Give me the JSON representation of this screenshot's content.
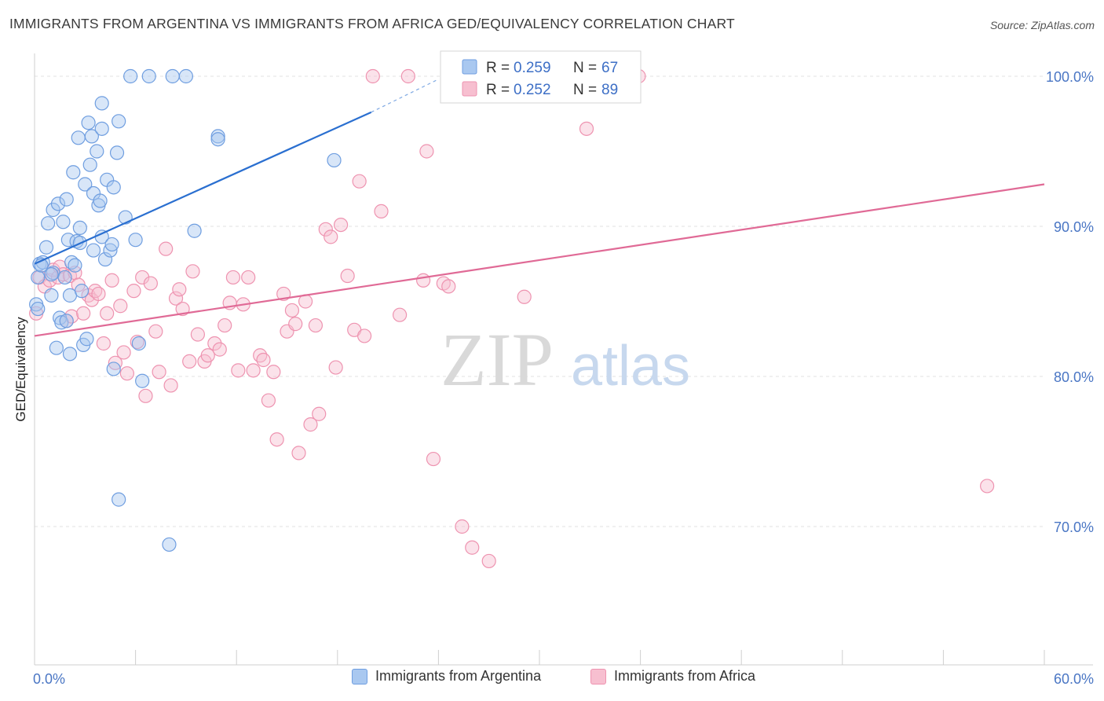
{
  "title": "IMMIGRANTS FROM ARGENTINA VS IMMIGRANTS FROM AFRICA GED/EQUIVALENCY CORRELATION CHART",
  "source": "Source: ZipAtlas.com",
  "watermark": {
    "zip": "ZIP",
    "atlas": "atlas"
  },
  "colors": {
    "argentina_fill": "#a9c8f0",
    "argentina_stroke": "#6f9ee0",
    "argentina_line": "#2a6fd0",
    "africa_fill": "#f7bfd0",
    "africa_stroke": "#ee93b0",
    "africa_line": "#e06a96",
    "tick_text": "#4a76c4",
    "grid": "#e1e1e1"
  },
  "legend": {
    "rows": [
      {
        "r_label": "R =",
        "r_value": "0.259",
        "n_label": "N =",
        "n_value": "67"
      },
      {
        "r_label": "R =",
        "r_value": "0.252",
        "n_label": "N =",
        "n_value": "89"
      }
    ]
  },
  "bottom_legend": [
    {
      "label": "Immigrants from Argentina"
    },
    {
      "label": "Immigrants from Africa"
    }
  ],
  "chart_data": {
    "type": "scatter",
    "xlabel": "",
    "ylabel": "GED/Equivalency",
    "xlim": [
      0,
      60
    ],
    "ylim": [
      60,
      101.5
    ],
    "x_tick_labels": [
      "0.0%",
      "60.0%"
    ],
    "y_ticks": [
      70,
      80,
      90,
      100
    ],
    "y_tick_labels": [
      "70.0%",
      "80.0%",
      "90.0%",
      "100.0%"
    ],
    "grid": true,
    "legend_position": "top-center",
    "series": [
      {
        "name": "Immigrants from Argentina",
        "r": 0.259,
        "n": 67,
        "trend": {
          "x": [
            0,
            20
          ],
          "y": [
            87.5,
            97.6
          ]
        },
        "trend_extension": {
          "x": [
            20,
            24
          ],
          "y": [
            97.6,
            99.8
          ]
        },
        "points": [
          [
            0.1,
            84.8
          ],
          [
            0.2,
            86.6
          ],
          [
            0.3,
            87.5
          ],
          [
            0.5,
            87.6
          ],
          [
            0.7,
            88.6
          ],
          [
            0.8,
            90.2
          ],
          [
            1.0,
            85.4
          ],
          [
            1.1,
            86.9
          ],
          [
            1.1,
            91.1
          ],
          [
            1.3,
            81.9
          ],
          [
            1.4,
            91.5
          ],
          [
            1.5,
            83.9
          ],
          [
            1.6,
            83.6
          ],
          [
            1.7,
            90.3
          ],
          [
            1.8,
            86.6
          ],
          [
            1.9,
            91.8
          ],
          [
            2.0,
            89.1
          ],
          [
            2.1,
            81.5
          ],
          [
            2.1,
            85.4
          ],
          [
            2.2,
            87.6
          ],
          [
            2.3,
            93.6
          ],
          [
            2.4,
            87.4
          ],
          [
            2.5,
            89.0
          ],
          [
            2.6,
            95.9
          ],
          [
            2.7,
            88.9
          ],
          [
            2.7,
            89.9
          ],
          [
            2.8,
            85.7
          ],
          [
            2.9,
            82.1
          ],
          [
            3.0,
            92.8
          ],
          [
            3.1,
            82.5
          ],
          [
            3.2,
            96.9
          ],
          [
            3.3,
            94.1
          ],
          [
            3.4,
            96.0
          ],
          [
            3.5,
            88.4
          ],
          [
            3.5,
            92.2
          ],
          [
            3.7,
            95.0
          ],
          [
            3.8,
            91.4
          ],
          [
            3.9,
            91.7
          ],
          [
            4.0,
            89.3
          ],
          [
            4.0,
            96.5
          ],
          [
            4.0,
            98.2
          ],
          [
            4.2,
            87.8
          ],
          [
            4.3,
            93.1
          ],
          [
            4.5,
            88.4
          ],
          [
            4.6,
            88.8
          ],
          [
            4.7,
            80.5
          ],
          [
            4.7,
            92.6
          ],
          [
            4.9,
            94.9
          ],
          [
            5.0,
            97.0
          ],
          [
            5.0,
            71.8
          ],
          [
            5.4,
            90.6
          ],
          [
            5.7,
            100.0
          ],
          [
            6.0,
            89.1
          ],
          [
            6.2,
            82.2
          ],
          [
            6.4,
            79.7
          ],
          [
            6.8,
            100.0
          ],
          [
            8.0,
            68.8
          ],
          [
            8.2,
            100.0
          ],
          [
            9.0,
            100.0
          ],
          [
            9.5,
            89.7
          ],
          [
            10.9,
            96.0
          ],
          [
            10.9,
            95.8
          ],
          [
            17.8,
            94.4
          ],
          [
            0.2,
            84.5
          ],
          [
            0.4,
            87.4
          ],
          [
            1.0,
            86.8
          ],
          [
            1.9,
            83.7
          ]
        ]
      },
      {
        "name": "Immigrants from Africa",
        "r": 0.252,
        "n": 89,
        "trend": {
          "x": [
            0,
            60
          ],
          "y": [
            82.7,
            92.8
          ]
        },
        "points": [
          [
            0.1,
            84.2
          ],
          [
            0.3,
            86.6
          ],
          [
            0.6,
            86.0
          ],
          [
            0.9,
            86.4
          ],
          [
            1.1,
            87.1
          ],
          [
            1.4,
            86.6
          ],
          [
            1.5,
            87.3
          ],
          [
            1.7,
            86.8
          ],
          [
            1.9,
            83.7
          ],
          [
            2.1,
            86.7
          ],
          [
            2.2,
            84.0
          ],
          [
            2.4,
            86.9
          ],
          [
            2.6,
            86.1
          ],
          [
            2.9,
            84.2
          ],
          [
            3.2,
            85.4
          ],
          [
            3.4,
            85.1
          ],
          [
            3.6,
            85.7
          ],
          [
            3.8,
            85.5
          ],
          [
            4.1,
            82.2
          ],
          [
            4.3,
            84.2
          ],
          [
            4.6,
            86.4
          ],
          [
            4.8,
            80.9
          ],
          [
            5.1,
            84.7
          ],
          [
            5.3,
            81.6
          ],
          [
            5.5,
            80.2
          ],
          [
            5.9,
            85.7
          ],
          [
            6.1,
            82.3
          ],
          [
            6.4,
            86.6
          ],
          [
            6.6,
            78.7
          ],
          [
            6.9,
            86.2
          ],
          [
            7.2,
            83.0
          ],
          [
            7.4,
            80.3
          ],
          [
            7.8,
            88.5
          ],
          [
            8.1,
            79.4
          ],
          [
            8.4,
            85.2
          ],
          [
            8.6,
            85.8
          ],
          [
            8.8,
            84.5
          ],
          [
            9.2,
            81.0
          ],
          [
            9.4,
            87.0
          ],
          [
            9.7,
            82.8
          ],
          [
            10.1,
            81.0
          ],
          [
            10.3,
            81.4
          ],
          [
            10.7,
            82.2
          ],
          [
            11.0,
            81.8
          ],
          [
            11.3,
            83.4
          ],
          [
            11.6,
            84.9
          ],
          [
            11.8,
            86.6
          ],
          [
            12.1,
            80.4
          ],
          [
            12.4,
            84.8
          ],
          [
            12.7,
            86.6
          ],
          [
            13.0,
            80.4
          ],
          [
            13.4,
            81.4
          ],
          [
            13.6,
            81.1
          ],
          [
            13.9,
            78.4
          ],
          [
            14.2,
            80.3
          ],
          [
            14.4,
            75.8
          ],
          [
            14.8,
            85.5
          ],
          [
            15.0,
            83.0
          ],
          [
            15.3,
            84.4
          ],
          [
            15.5,
            83.5
          ],
          [
            15.7,
            74.9
          ],
          [
            16.1,
            85.0
          ],
          [
            16.4,
            76.8
          ],
          [
            16.7,
            83.4
          ],
          [
            16.9,
            77.5
          ],
          [
            17.3,
            89.8
          ],
          [
            17.6,
            89.3
          ],
          [
            17.9,
            80.6
          ],
          [
            18.2,
            90.1
          ],
          [
            18.6,
            86.7
          ],
          [
            19.0,
            83.1
          ],
          [
            19.3,
            93.0
          ],
          [
            19.6,
            82.7
          ],
          [
            20.1,
            100.0
          ],
          [
            20.6,
            91.0
          ],
          [
            21.7,
            84.1
          ],
          [
            22.2,
            100.0
          ],
          [
            23.1,
            86.4
          ],
          [
            23.3,
            95.0
          ],
          [
            23.7,
            74.5
          ],
          [
            24.3,
            86.2
          ],
          [
            24.6,
            86.0
          ],
          [
            25.4,
            70.0
          ],
          [
            26.0,
            68.6
          ],
          [
            27.0,
            67.7
          ],
          [
            29.1,
            85.3
          ],
          [
            32.8,
            96.5
          ],
          [
            35.9,
            100.0
          ],
          [
            56.6,
            72.7
          ]
        ]
      }
    ]
  }
}
